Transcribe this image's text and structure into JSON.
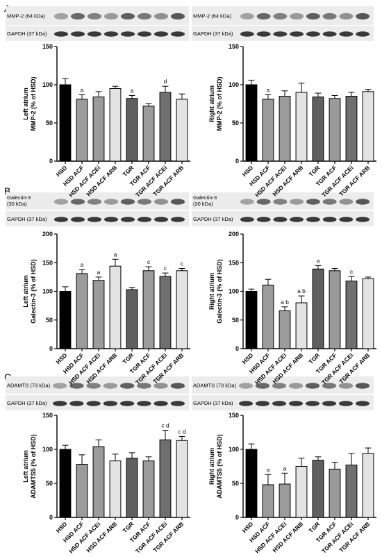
{
  "panel_letters": [
    "A",
    "B",
    "C"
  ],
  "blot_labels": [
    {
      "target": "MMP-2 (64 kDa)",
      "control": "GAPDH (37 kDa)"
    },
    {
      "target": "MMP-2 (64 kDa)",
      "control": "GAPDH (37 kDa)"
    },
    {
      "target": "Galectin-3\n(30 kDa)",
      "control": "GAPDH (37 kDa)"
    },
    {
      "target": "Galectin-3\n(30 kDa)",
      "control": "GAPDH (37 kDa)"
    },
    {
      "target": "ADAMTS (73 kDa)",
      "control": "GAPDH (37 kDa)"
    },
    {
      "target": "ADAMTS (73 kDa)",
      "control": "GAPDH (37 kDa)"
    }
  ],
  "colors": {
    "HSD": "#000000",
    "HSD ACF": "#9b9b9b",
    "HSD ACF ACEi": "#9b9b9b",
    "HSD ACF ARB": "#e3e3e3",
    "TGR": "#5f5f5f",
    "TGR ACF": "#9b9b9b",
    "TGR ACF ACEi": "#6f6f6f",
    "TGR ACF ARB": "#e3e3e3"
  },
  "chart_data": [
    {
      "type": "bar",
      "ylabel": [
        "Left atrium",
        "MMP-2 (% of HSD)"
      ],
      "ylim": [
        0,
        150
      ],
      "yticks": [
        0,
        50,
        100,
        150
      ],
      "categories": [
        "HSD",
        "HSD ACF",
        "HSD ACF ACEi",
        "HSD ACF ARB",
        "TGR",
        "TGR ACF",
        "TGR ACF ACEi",
        "TGR ACF ARB"
      ],
      "values": [
        100,
        81,
        84,
        95,
        82,
        72,
        90,
        81
      ],
      "errors": [
        8,
        6,
        7,
        3,
        4,
        3,
        8,
        7
      ],
      "annotations": [
        "",
        "a",
        "",
        "",
        "a",
        "",
        "d",
        ""
      ]
    },
    {
      "type": "bar",
      "ylabel": [
        "Right atrium",
        "MMP-2 (% of HSD)"
      ],
      "ylim": [
        0,
        150
      ],
      "yticks": [
        0,
        50,
        100,
        150
      ],
      "categories": [
        "HSD",
        "HSD ACF",
        "HSD ACF ACEi",
        "HSD ACF ARB",
        "TGR",
        "TGR ACF",
        "TGR ACF ACEi",
        "TGR ACF ARB"
      ],
      "values": [
        100,
        81,
        85,
        90,
        84,
        82,
        85,
        91
      ],
      "errors": [
        6,
        6,
        7,
        12,
        5,
        4,
        5,
        3
      ],
      "annotations": [
        "",
        "a",
        "",
        "",
        "",
        "",
        "",
        ""
      ]
    },
    {
      "type": "bar",
      "ylabel": [
        "Left atrium",
        "Galectin-3 (% of HSD)"
      ],
      "ylim": [
        0,
        200
      ],
      "yticks": [
        0,
        50,
        100,
        150,
        200
      ],
      "categories": [
        "HSD",
        "HSD ACF",
        "HSD ACF ACEi",
        "HSD ACF ARB",
        "TGR",
        "TGR ACF",
        "TGR ACF ACEi",
        "TGR ACF ARB"
      ],
      "values": [
        100,
        131,
        119,
        144,
        103,
        136,
        126,
        136
      ],
      "errors": [
        8,
        7,
        6,
        12,
        4,
        7,
        6,
        4
      ],
      "annotations": [
        "",
        "a",
        "a",
        "a",
        "",
        "c",
        "c",
        "c"
      ]
    },
    {
      "type": "bar",
      "ylabel": [
        "Right atrium",
        "Galectin-3 (% of HSD)"
      ],
      "ylim": [
        0,
        200
      ],
      "yticks": [
        0,
        50,
        100,
        150,
        200
      ],
      "categories": [
        "HSD",
        "HSD ACF",
        "HSD ACF ACEi",
        "HSD ACF ARB",
        "TGR",
        "TGR ACF",
        "TGR ACF ACEi",
        "TGR ACF ARB"
      ],
      "values": [
        100,
        111,
        66,
        80,
        139,
        136,
        118,
        122
      ],
      "errors": [
        4,
        10,
        7,
        12,
        6,
        4,
        8,
        3
      ],
      "annotations": [
        "",
        "",
        "a b",
        "a b",
        "a",
        "",
        "c",
        ""
      ]
    },
    {
      "type": "bar",
      "ylabel": [
        "Left atrium",
        "ADAMTS5 (% of HSD)"
      ],
      "ylim": [
        0,
        150
      ],
      "yticks": [
        0,
        50,
        100,
        150
      ],
      "categories": [
        "HSD",
        "HSD ACF",
        "HSD ACF ACEi",
        "HSD ACF ARB",
        "TGR",
        "TGR ACF",
        "TGR ACF ACEi",
        "TGR ACF ARB"
      ],
      "values": [
        100,
        78,
        104,
        83,
        87,
        83,
        114,
        113
      ],
      "errors": [
        6,
        14,
        10,
        10,
        8,
        6,
        14,
        6
      ],
      "annotations": [
        "",
        "",
        "",
        "",
        "",
        "",
        "c d",
        "c d"
      ]
    },
    {
      "type": "bar",
      "ylabel": [
        "Right atrium",
        "ADAMTS5 (% of HSD)"
      ],
      "ylim": [
        0,
        150
      ],
      "yticks": [
        0,
        50,
        100,
        150
      ],
      "categories": [
        "HSD",
        "HSD ACF",
        "HSD ACF ACEi",
        "HSD ACF ARB",
        "TGR",
        "TGR ACF",
        "TGR ACF ACEi",
        "TGR ACF ARB"
      ],
      "values": [
        100,
        48,
        49,
        75,
        84,
        71,
        77,
        94
      ],
      "errors": [
        8,
        15,
        16,
        12,
        5,
        10,
        17,
        8
      ],
      "annotations": [
        "",
        "a",
        "a",
        "",
        "",
        "",
        "",
        ""
      ]
    }
  ]
}
